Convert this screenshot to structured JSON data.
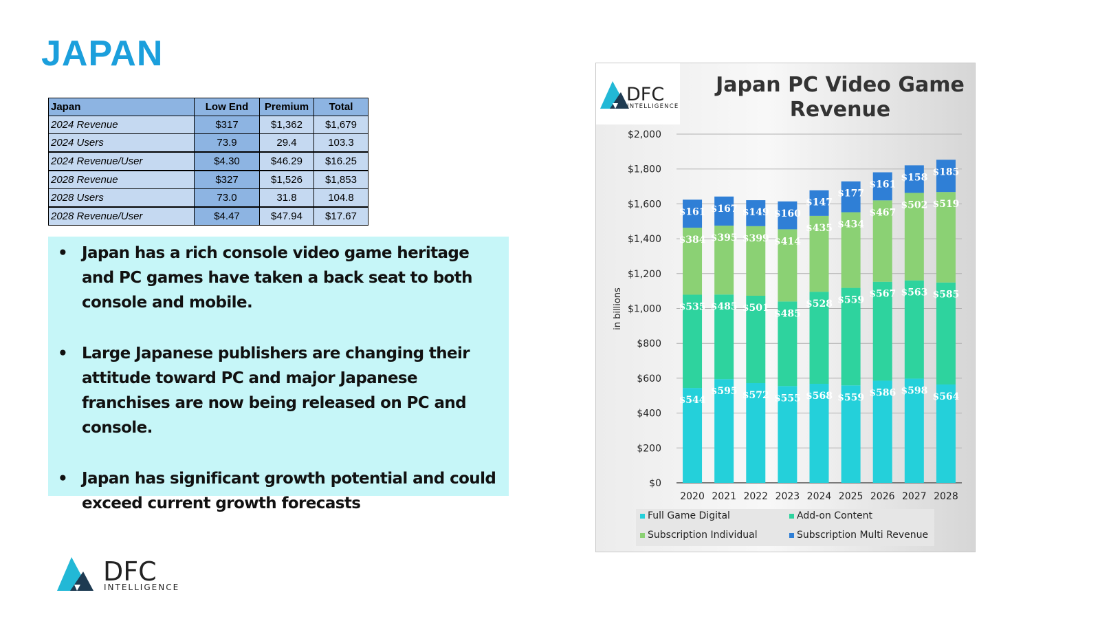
{
  "page": {
    "title": "JAPAN"
  },
  "table": {
    "headers": [
      "Japan",
      "Low End",
      "Premium",
      "Total"
    ],
    "rows": [
      {
        "label": "2024 Revenue",
        "values": [
          "$317",
          "$1,362",
          "$1,679"
        ]
      },
      {
        "label": "2024 Users",
        "values": [
          "73.9",
          "29.4",
          "103.3"
        ]
      },
      {
        "label": "2024 Revenue/User",
        "values": [
          "$4.30",
          "$46.29",
          "$16.25"
        ]
      },
      {
        "label": "2028 Revenue",
        "values": [
          "$327",
          "$1,526",
          "$1,853"
        ]
      },
      {
        "label": "2028 Users",
        "values": [
          "73.0",
          "31.8",
          "104.8"
        ]
      },
      {
        "label": "2028 Revenue/User",
        "values": [
          "$4.47",
          "$47.94",
          "$17.67"
        ]
      }
    ]
  },
  "bullets": [
    "Japan has a rich console video game heritage and PC games have taken a back seat to both console and mobile.",
    "Large Japanese publishers are changing their attitude toward PC and major Japanese franchises are now being released on PC and console.",
    "Japan has significant growth potential and could exceed current growth forecasts"
  ],
  "logo": {
    "main": "DFC",
    "sub": "INTELLIGENCE"
  },
  "colors": {
    "title_blue": "#1b9fdc",
    "full_game": "#24d0da",
    "addon": "#2ed39e",
    "sub_individual": "#8bd174",
    "sub_multi": "#2f7fd6"
  },
  "chart_data": {
    "type": "bar",
    "stacked": true,
    "title": "Japan PC Video Game Revenue",
    "xlabel": "",
    "ylabel": "in billions",
    "ylim": [
      0,
      2000
    ],
    "yticks": [
      "$0",
      "$200",
      "$400",
      "$600",
      "$800",
      "$1,000",
      "$1,200",
      "$1,400",
      "$1,600",
      "$1,800",
      "$2,000"
    ],
    "categories": [
      "2020",
      "2021",
      "2022",
      "2023",
      "2024",
      "2025",
      "2026",
      "2027",
      "2028"
    ],
    "series": [
      {
        "name": "Full Game Digital",
        "color": "#24d0da",
        "values": [
          544,
          595,
          572,
          555,
          568,
          559,
          586,
          598,
          564
        ],
        "labels": [
          "$544",
          "$595",
          "$572",
          "$555",
          "$568",
          "$559",
          "$586",
          "$598",
          "$564"
        ]
      },
      {
        "name": "Add-on Content",
        "color": "#2ed39e",
        "values": [
          535,
          485,
          501,
          485,
          528,
          559,
          567,
          563,
          585
        ],
        "labels": [
          "$535",
          "$485",
          "$501",
          "$485",
          "$528",
          "$559",
          "$567",
          "$563",
          "$585"
        ]
      },
      {
        "name": "Subscription Individual",
        "color": "#8bd174",
        "values": [
          384,
          395,
          399,
          414,
          435,
          434,
          467,
          502,
          519
        ],
        "labels": [
          "$384",
          "$395",
          "$399",
          "$414",
          "$435",
          "$434",
          "$467",
          "$502",
          "$519"
        ]
      },
      {
        "name": "Subscription Multi Revenue",
        "color": "#2f7fd6",
        "values": [
          161,
          167,
          149,
          160,
          147,
          177,
          161,
          158,
          185
        ],
        "labels": [
          "$161",
          "$167",
          "$149",
          "$160",
          "$147",
          "$177",
          "$161",
          "$158",
          "$185"
        ]
      }
    ],
    "grid": true,
    "legend_position": "bottom"
  }
}
